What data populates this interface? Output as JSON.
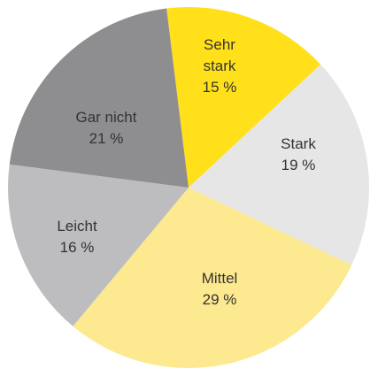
{
  "chart_data": {
    "type": "pie",
    "categories": [
      "Sehr stark",
      "Stark",
      "Mittel",
      "Leicht",
      "Gar nicht"
    ],
    "values": [
      15,
      19,
      29,
      16,
      21
    ],
    "value_labels": [
      "15 %",
      "19 %",
      "29 %",
      "16 %",
      "21 %"
    ],
    "colors": [
      "#ffe01b",
      "#e6e6e6",
      "#fde98f",
      "#bdbdbf",
      "#8e8e90"
    ]
  }
}
